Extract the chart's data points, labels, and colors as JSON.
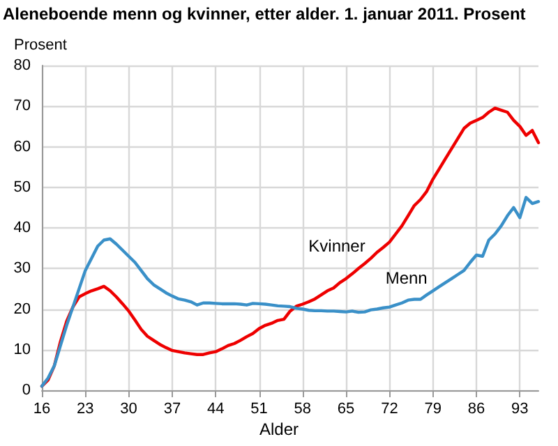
{
  "chart_data": {
    "type": "line",
    "title": "Aleneboende menn og kvinner, etter alder. 1. januar 2011. Prosent",
    "xlabel": "Alder",
    "ylabel": "Prosent",
    "x": [
      16,
      17,
      18,
      19,
      20,
      21,
      22,
      23,
      24,
      25,
      26,
      27,
      28,
      29,
      30,
      31,
      32,
      33,
      34,
      35,
      36,
      37,
      38,
      39,
      40,
      41,
      42,
      43,
      44,
      45,
      46,
      47,
      48,
      49,
      50,
      51,
      52,
      53,
      54,
      55,
      56,
      57,
      58,
      59,
      60,
      61,
      62,
      63,
      64,
      65,
      66,
      67,
      68,
      69,
      70,
      71,
      72,
      73,
      74,
      75,
      76,
      77,
      78,
      79,
      80,
      81,
      82,
      83,
      84,
      85,
      86,
      87,
      88,
      89,
      90,
      91,
      92,
      93,
      94,
      95,
      96
    ],
    "series": [
      {
        "color": "#ee0000",
        "values": [
          1,
          2.5,
          6,
          12,
          17,
          20.5,
          23,
          23.8,
          24.5,
          25,
          25.6,
          24.5,
          23,
          21.3,
          19.5,
          17.3,
          15,
          13.3,
          12.3,
          11.3,
          10.5,
          9.8,
          9.5,
          9.2,
          9,
          8.8,
          8.8,
          9.2,
          9.5,
          10.2,
          11,
          11.5,
          12.3,
          13.2,
          14,
          15.2,
          16,
          16.5,
          17.2,
          17.5,
          19.5,
          20.7,
          21.2,
          21.8,
          22.5,
          23.5,
          24.5,
          25.2,
          26.5,
          27.5,
          28.7,
          30,
          31.2,
          32.5,
          34,
          35.2,
          36.5,
          38.5,
          40.5,
          43,
          45.5,
          47,
          49,
          52,
          54.5,
          57,
          59.5,
          62,
          64.5,
          65.8,
          66.5,
          67.2,
          68.5,
          69.5,
          69,
          68.5,
          66.5,
          65,
          62.8,
          64,
          61
        ]
      },
      {
        "color": "#3a90c8",
        "values": [
          1,
          3,
          6,
          11,
          16,
          20.5,
          25,
          29.5,
          32.5,
          35.5,
          37,
          37.3,
          36,
          34.5,
          33,
          31.5,
          29.5,
          27.5,
          26,
          25,
          24,
          23.2,
          22.5,
          22.2,
          21.8,
          21,
          21.5,
          21.5,
          21.4,
          21.3,
          21.3,
          21.3,
          21.2,
          21,
          21.4,
          21.3,
          21.2,
          21,
          20.8,
          20.7,
          20.6,
          20.2,
          20,
          19.7,
          19.6,
          19.6,
          19.5,
          19.5,
          19.4,
          19.3,
          19.5,
          19.2,
          19.3,
          19.8,
          20,
          20.3,
          20.5,
          21,
          21.5,
          22.2,
          22.4,
          22.4,
          23.5,
          24.5,
          25.5,
          26.5,
          27.5,
          28.5,
          29.5,
          31.5,
          33.3,
          33,
          37,
          38.5,
          40.5,
          43,
          45,
          42.5,
          47.5,
          46,
          46.5
        ]
      }
    ],
    "annotations": [
      {
        "text": "Kvinner",
        "x": 69,
        "y": 32.5
      },
      {
        "text": "Menn",
        "x": 79,
        "y": 24.5
      }
    ],
    "xlim": [
      16,
      96
    ],
    "xticks": [
      16,
      23,
      30,
      37,
      44,
      51,
      58,
      65,
      72,
      79,
      86,
      93
    ],
    "ylim": [
      0,
      80
    ],
    "yticks": [
      0,
      10,
      20,
      30,
      40,
      50,
      60,
      70,
      80
    ],
    "grid": true,
    "marker": "none",
    "line_style": "solid"
  }
}
